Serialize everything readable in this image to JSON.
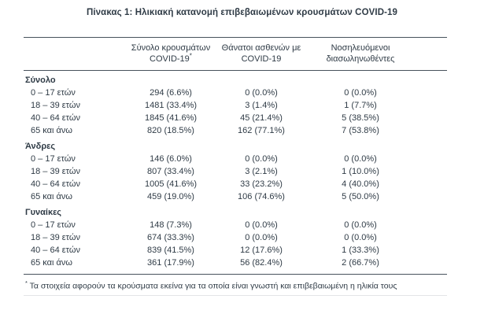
{
  "title": "Πίνακας 1: Ηλικιακή κατανομή επιβεβαιωμένων κρουσμάτων COVID-19",
  "table": {
    "headers": [
      {
        "line1": "Σύνολο κρουσμάτων",
        "line2": "COVID-19",
        "sup": "*"
      },
      {
        "line1": "Θάνατοι ασθενών με",
        "line2": "COVID-19",
        "sup": ""
      },
      {
        "line1": "Νοσηλευόμενοι",
        "line2": "διασωληνωθέντες",
        "sup": ""
      }
    ],
    "sections": [
      {
        "name": "Σύνολο",
        "rows": [
          {
            "label": "0 – 17 ετών",
            "cases": "294 (6.6%)",
            "deaths": "0 (0.0%)",
            "intubated": "0 (0.0%)"
          },
          {
            "label": "18 – 39 ετών",
            "cases": "1481 (33.4%)",
            "deaths": "3 (1.4%)",
            "intubated": "1 (7.7%)"
          },
          {
            "label": "40 – 64 ετών",
            "cases": "1845 (41.6%)",
            "deaths": "45 (21.4%)",
            "intubated": "5 (38.5%)"
          },
          {
            "label": "65 και άνω",
            "cases": "820 (18.5%)",
            "deaths": "162 (77.1%)",
            "intubated": "7 (53.8%)"
          }
        ]
      },
      {
        "name": "Άνδρες",
        "rows": [
          {
            "label": "0 – 17 ετών",
            "cases": "146 (6.0%)",
            "deaths": "0 (0.0%)",
            "intubated": "0 (0.0%)"
          },
          {
            "label": "18 – 39 ετών",
            "cases": "807 (33.4%)",
            "deaths": "3 (2.1%)",
            "intubated": "1 (10.0%)"
          },
          {
            "label": "40 – 64 ετών",
            "cases": "1005 (41.6%)",
            "deaths": "33 (23.2%)",
            "intubated": "4 (40.0%)"
          },
          {
            "label": "65 και άνω",
            "cases": "459 (19.0%)",
            "deaths": "106 (74.6%)",
            "intubated": "5 (50.0%)"
          }
        ]
      },
      {
        "name": "Γυναίκες",
        "rows": [
          {
            "label": "0 – 17 ετών",
            "cases": "148 (7.3%)",
            "deaths": "0 (0.0%)",
            "intubated": "0 (0.0%)"
          },
          {
            "label": "18 – 39 ετών",
            "cases": "674 (33.3%)",
            "deaths": "0 (0.0%)",
            "intubated": "0 (0.0%)"
          },
          {
            "label": "40 – 64 ετών",
            "cases": "839 (41.5%)",
            "deaths": "12 (17.6%)",
            "intubated": "1 (33.3%)"
          },
          {
            "label": "65 και άνω",
            "cases": "361 (17.9%)",
            "deaths": "56 (82.4%)",
            "intubated": "2 (66.7%)"
          }
        ]
      }
    ],
    "footnote_marker": "*",
    "footnote_text": "Τα στοιχεία αφορούν τα κρούσματα εκείνα για τα οποία είναι γνωστή και επιβεβαιωμένη η ηλικία τους"
  },
  "colors": {
    "text": "#2f3b46",
    "rule": "#47525c",
    "faint_rule": "#e3e5e7"
  }
}
